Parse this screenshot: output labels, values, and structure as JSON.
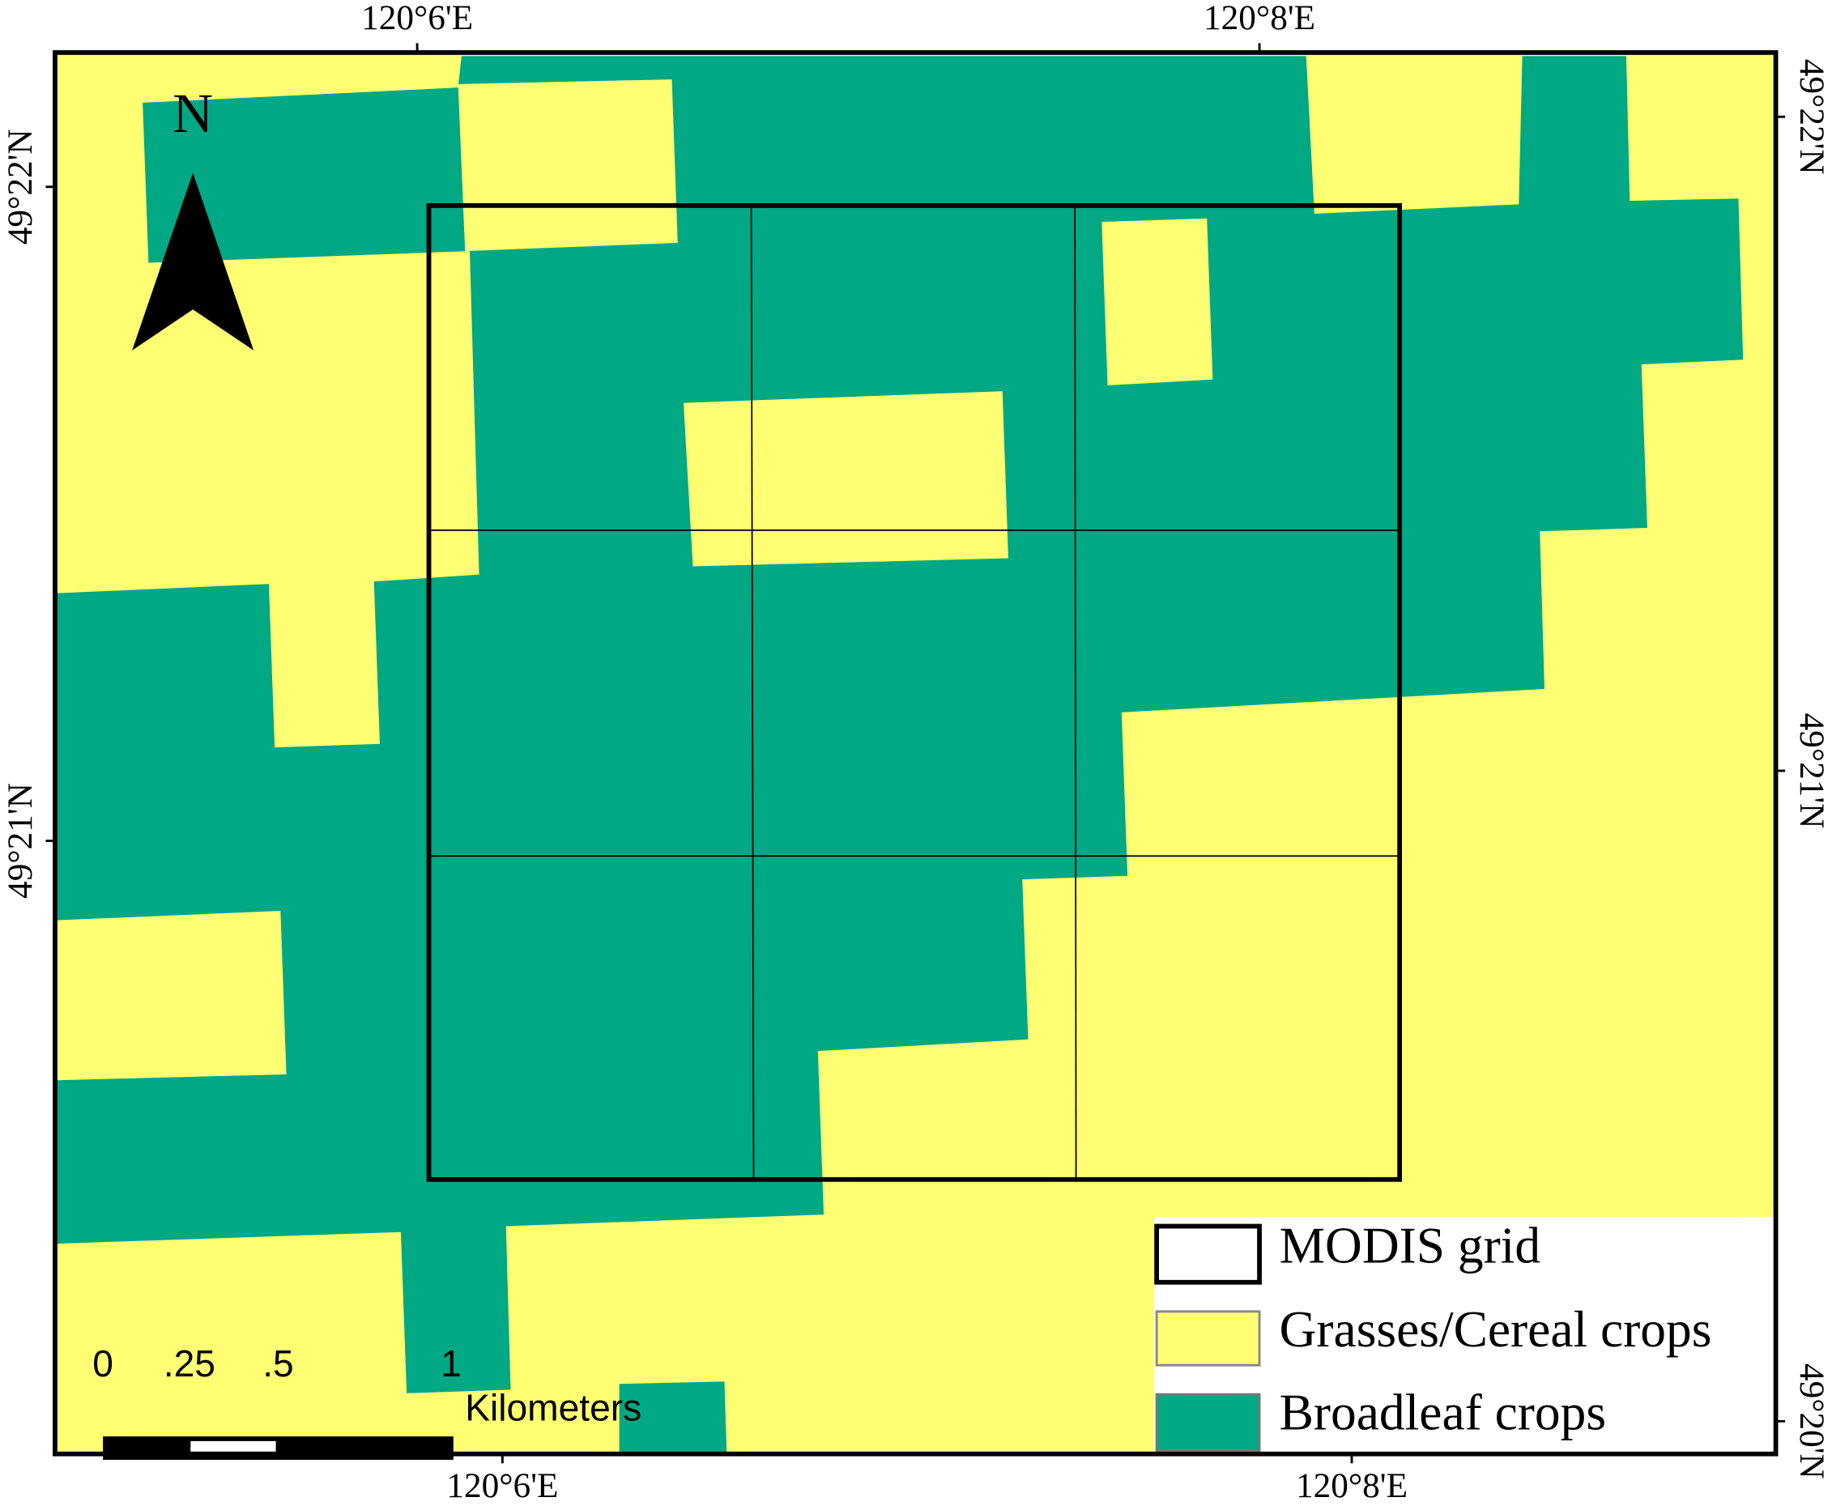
{
  "map": {
    "top_labels": [
      "120°6'E",
      "120°8'E"
    ],
    "bottom_labels": [
      "120°6'E",
      "120°8'E"
    ],
    "left_labels": [
      "49°22'N",
      "49°21'N"
    ],
    "right_labels": [
      "49°22'N",
      "49°21'N",
      "49°20'N"
    ],
    "north": "N",
    "scale_bar": {
      "ticks": [
        "0",
        ".25",
        ".5",
        "1"
      ],
      "unit": "Kilometers"
    },
    "legend": [
      {
        "label": "MODIS grid"
      },
      {
        "label": "Grasses/Cereal crops"
      },
      {
        "label": "Broadleaf crops"
      }
    ]
  }
}
